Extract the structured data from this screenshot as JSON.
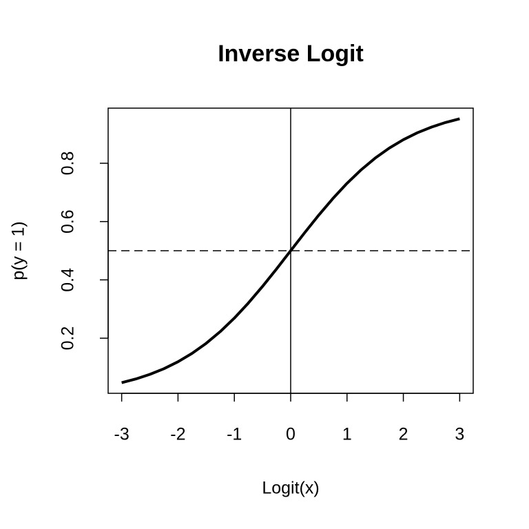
{
  "chart_data": {
    "type": "line",
    "title": "Inverse Logit",
    "x_label": "Logit(x)",
    "y_label": "p(y = 1)",
    "x": [
      -3,
      -2.75,
      -2.5,
      -2.25,
      -2,
      -1.75,
      -1.5,
      -1.25,
      -1,
      -0.75,
      -0.5,
      -0.25,
      0,
      0.25,
      0.5,
      0.75,
      1,
      1.25,
      1.5,
      1.75,
      2,
      2.25,
      2.5,
      2.75,
      3
    ],
    "series": [
      {
        "color": "#000000",
        "values": [
          0.0474,
          0.0601,
          0.0759,
          0.0953,
          0.1192,
          0.148,
          0.1824,
          0.2227,
          0.2689,
          0.3208,
          0.3775,
          0.4378,
          0.5,
          0.5622,
          0.6225,
          0.6792,
          0.7311,
          0.7773,
          0.8176,
          0.852,
          0.8808,
          0.9047,
          0.9241,
          0.9399,
          0.9526
        ]
      }
    ],
    "xlim": [
      -3.24,
      3.24
    ],
    "ylim": [
      0.011,
      0.989
    ],
    "xticks": [
      -3,
      -2,
      -1,
      0,
      1,
      2,
      3
    ],
    "yticks": [
      0.2,
      0.4,
      0.6,
      0.8
    ],
    "reference_lines": [
      {
        "axis": "x",
        "value": 0,
        "style": "solid"
      },
      {
        "axis": "y",
        "value": 0.5,
        "style": "dashed"
      }
    ]
  }
}
